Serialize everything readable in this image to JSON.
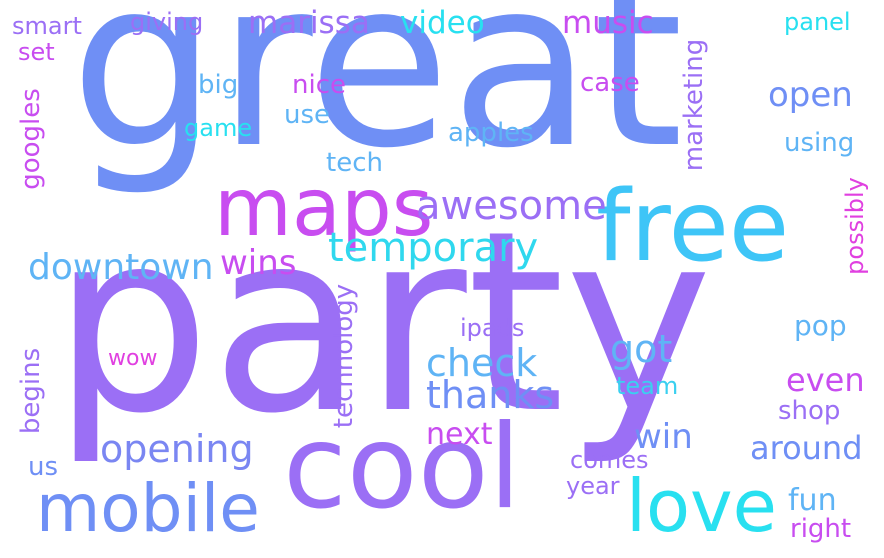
{
  "palette": [
    "#6f8ff5",
    "#9b6ff5",
    "#c84df0",
    "#e040e0",
    "#5fb4f5",
    "#3ad0f0",
    "#28e0f0"
  ],
  "words": {
    "great": "great",
    "party": "party",
    "cool": "cool",
    "free": "free",
    "maps": "maps",
    "love": "love",
    "mobile": "mobile",
    "temporary": "temporary",
    "awesome": "awesome",
    "downtown": "downtown",
    "opening": "opening",
    "check": "check",
    "thanks": "thanks",
    "wins": "wins",
    "got": "got",
    "marissa": "marissa",
    "music": "music",
    "video": "video",
    "open": "open",
    "next": "next",
    "win": "win",
    "even": "even",
    "around": "around",
    "fun": "fun",
    "technology": "technology",
    "marketing": "marketing",
    "googles": "googles",
    "begins": "begins",
    "possibly": "possibly",
    "giving": "giving",
    "smart": "smart",
    "set": "set",
    "big": "big",
    "nice": "nice",
    "use": "use",
    "game": "game",
    "case": "case",
    "apples": "apples",
    "using": "using",
    "tech": "tech",
    "panel": "panel",
    "ipads": "ipads",
    "pop": "pop",
    "wow": "wow",
    "team": "team",
    "shop": "shop",
    "us": "us",
    "comes": "comes",
    "year": "year",
    "right": "right"
  }
}
